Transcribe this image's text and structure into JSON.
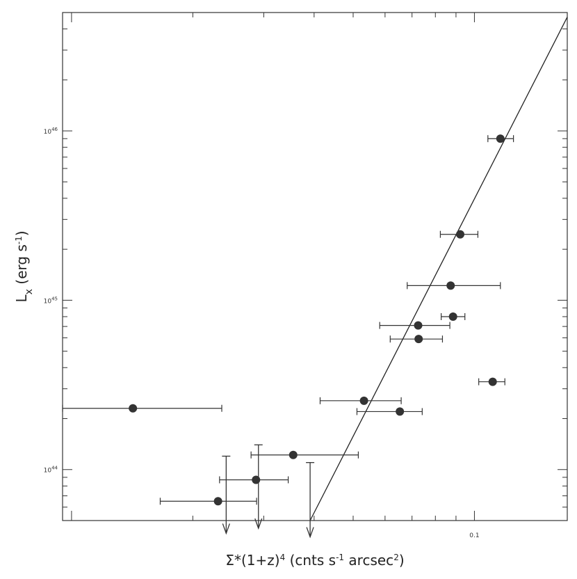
{
  "chart_data": {
    "type": "scatter",
    "title": "",
    "xlabel_parts": [
      "Σ*(1+z)",
      "4",
      " (cnts s",
      "-1",
      " arcsec",
      "2",
      ")"
    ],
    "ylabel_parts": [
      "L",
      "x",
      " (erg s",
      "-1",
      ")"
    ],
    "xscale": "log",
    "yscale": "log",
    "xlim": [
      0.0095,
      0.17
    ],
    "ylim": [
      50000000000000000000000000000000000000000000,
      5e+46
    ],
    "x_tick_labels": [
      {
        "value": 0.1,
        "text": "0.1"
      }
    ],
    "y_tick_labels": [
      {
        "value": 1e+44,
        "base": "10",
        "exp": "44"
      },
      {
        "value": 1e+45,
        "base": "10",
        "exp": "45"
      },
      {
        "value": 1e+46,
        "base": "10",
        "exp": "46"
      }
    ],
    "points": [
      {
        "x": 0.0142,
        "y": 2.3e+44,
        "xerr": [
          0.0095,
          0.0236
        ]
      },
      {
        "x": 0.0231,
        "y": 6.5e+43,
        "xerr": [
          0.0166,
          0.0288
        ]
      },
      {
        "x": 0.0287,
        "y": 8.7e+43,
        "xerr": [
          0.0233,
          0.0345
        ]
      },
      {
        "x": 0.0355,
        "y": 1.22e+44,
        "xerr": [
          0.0279,
          0.0515
        ]
      },
      {
        "x": 0.0532,
        "y": 2.55e+44,
        "xerr": [
          0.0414,
          0.0658
        ]
      },
      {
        "x": 0.0653,
        "y": 2.2e+44,
        "xerr": [
          0.0511,
          0.0742
        ]
      },
      {
        "x": 0.0725,
        "y": 7.1e+44,
        "xerr": [
          0.0582,
          0.0869
        ]
      },
      {
        "x": 0.0727,
        "y": 5.9e+44,
        "xerr": [
          0.0618,
          0.0833
        ]
      },
      {
        "x": 0.0873,
        "y": 1.22e+45,
        "xerr": [
          0.0681,
          0.116
        ]
      },
      {
        "x": 0.0885,
        "y": 8e+44,
        "xerr": [
          0.0827,
          0.0947
        ]
      },
      {
        "x": 0.0922,
        "y": 2.45e+45,
        "xerr": [
          0.0823,
          0.102
        ]
      },
      {
        "x": 0.111,
        "y": 3.3e+44,
        "xerr": [
          0.1025,
          0.119
        ]
      },
      {
        "x": 0.116,
        "y": 9e+45,
        "xerr": [
          0.108,
          0.125
        ]
      }
    ],
    "upper_limits": [
      {
        "x": 0.0242,
        "y_top": 1.2e+44,
        "y_bottom": 4.2e+43
      },
      {
        "x": 0.0291,
        "y_top": 1.4e+44,
        "y_bottom": 4.5e+43
      },
      {
        "x": 0.0391,
        "y_top": 1.1e+44,
        "y_bottom": 4e+43
      }
    ],
    "fit_line": {
      "x": [
        0.0391,
        0.17
      ],
      "y": [
        50000000000000000000000000000000000000000000,
        4.7e+46
      ]
    },
    "grid": false,
    "legend": "none"
  }
}
